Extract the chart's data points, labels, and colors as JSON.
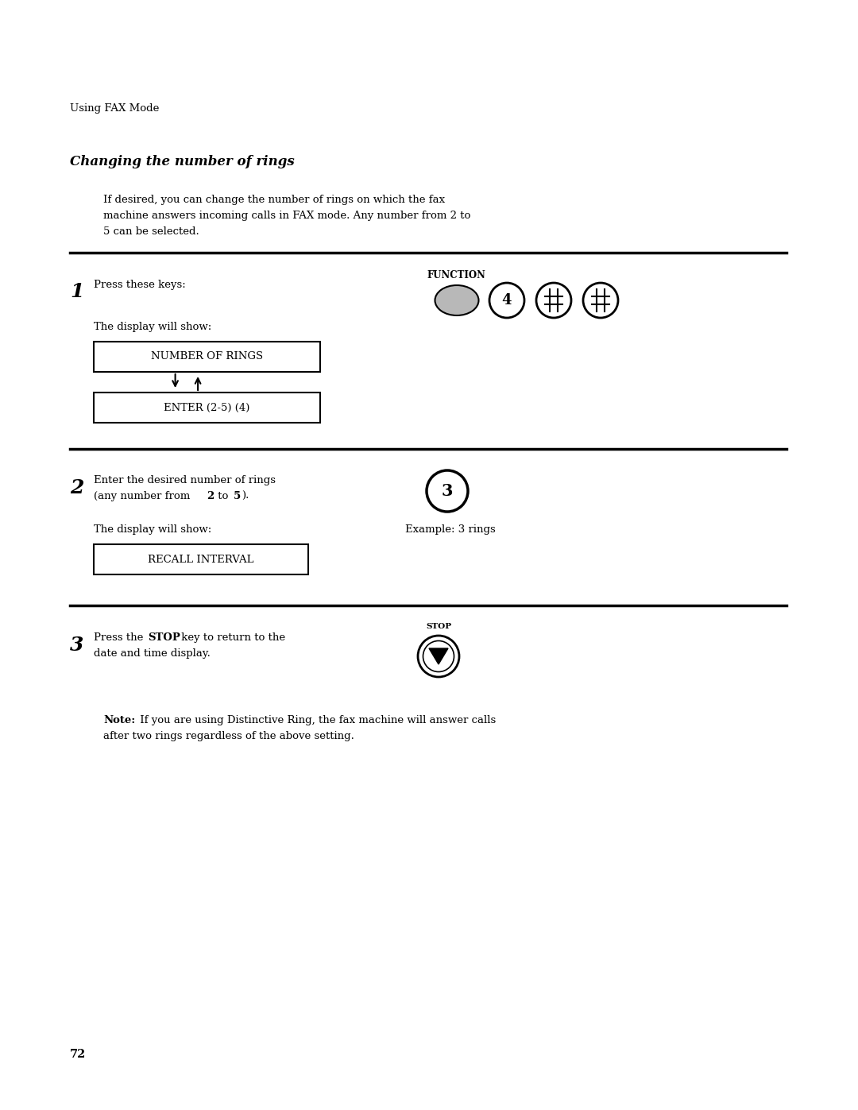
{
  "bg_color": "#ffffff",
  "page_width": 10.8,
  "page_height": 13.97,
  "header_text": "Using FAX Mode",
  "title_text": "Changing the number of rings",
  "intro_line1": "If desired, you can change the number of rings on which the fax",
  "intro_line2": "machine answers incoming calls in FAX mode. Any number from 2 to",
  "intro_line3": "5 can be selected.",
  "step1_num": "1",
  "step1_text": "Press these keys:",
  "step1_display_label": "The display will show:",
  "step1_box1": "NUMBER OF RINGS",
  "step1_box2": "ENTER (2-5) (4)",
  "step2_num": "2",
  "step2_line1a": "Enter the desired number of rings",
  "step2_line2a": "(any number from ",
  "step2_bold2": "2",
  "step2_line2b": " to ",
  "step2_bold5": "5",
  "step2_line2c": ").",
  "step2_display_label": "The display will show:",
  "step2_box1": "RECALL INTERVAL",
  "step2_example": "Example: 3 rings",
  "step3_num": "3",
  "step3_pre": "Press the ",
  "step3_bold": "STOP",
  "step3_post": " key to return to the",
  "step3_line2": "date and time display.",
  "note_bold": "Note:",
  "note_line1": " If you are using Distinctive Ring, the fax machine will answer calls",
  "note_line2": "after two rings regardless of the above setting.",
  "page_number": "72",
  "function_label": "FUNCTION",
  "stop_label": "STOP"
}
